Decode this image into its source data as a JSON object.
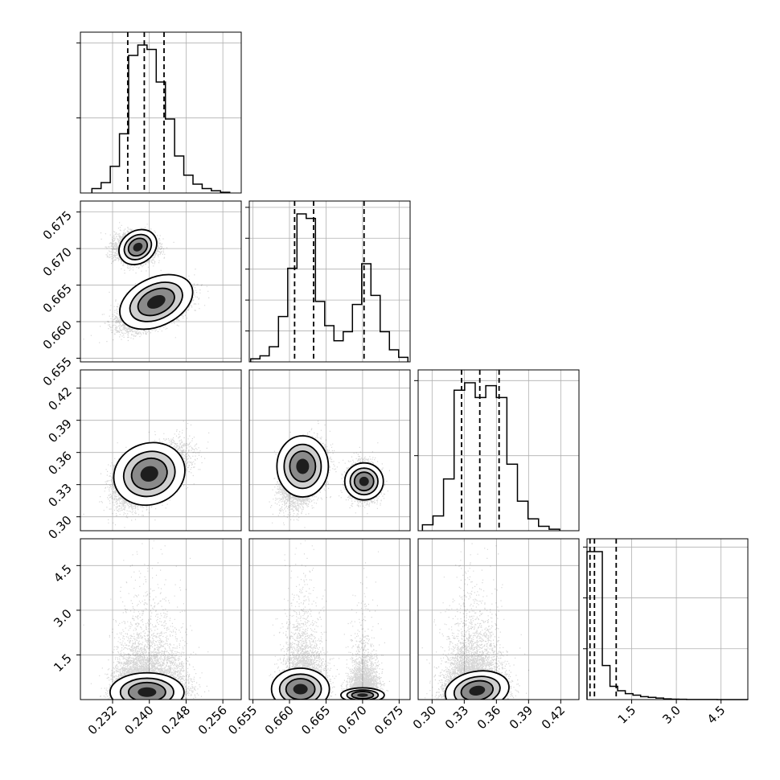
{
  "chart_data": {
    "type": "corner",
    "title": "",
    "parameters": [
      {
        "index": 0,
        "range": [
          0.225,
          0.26
        ],
        "ticks": [
          "0.232",
          "0.240",
          "0.248",
          "0.256"
        ],
        "tick_values": [
          0.232,
          0.24,
          0.248,
          0.256
        ],
        "quantiles": [
          0.2353,
          0.2389,
          0.2432
        ]
      },
      {
        "index": 1,
        "range": [
          0.6545,
          0.6765
        ],
        "ticks": [
          "0.655",
          "0.660",
          "0.665",
          "0.670",
          "0.675"
        ],
        "tick_values": [
          0.655,
          0.66,
          0.665,
          0.67,
          0.675
        ],
        "quantiles": [
          0.6607,
          0.6633,
          0.6702
        ]
      },
      {
        "index": 2,
        "range": [
          0.287,
          0.437
        ],
        "ticks": [
          "0.30",
          "0.33",
          "0.36",
          "0.39",
          "0.42"
        ],
        "tick_values": [
          0.3,
          0.33,
          0.36,
          0.39,
          0.42
        ],
        "quantiles": [
          0.3275,
          0.3445,
          0.3625
        ]
      },
      {
        "index": 3,
        "range": [
          0.0,
          5.4
        ],
        "ticks": [
          "1.5",
          "3.0",
          "4.5"
        ],
        "tick_values": [
          1.5,
          3.0,
          4.5
        ],
        "ticks_y": [
          "1.5",
          "3.0",
          "4.5"
        ],
        "quantiles": [
          0.1,
          0.25,
          0.98
        ]
      }
    ],
    "histograms": [
      {
        "param": 0,
        "counts": [
          3,
          7,
          18,
          40,
          93,
          100,
          97,
          75,
          50,
          25,
          12,
          6,
          3,
          1.5,
          0.5
        ]
      },
      {
        "param": 1,
        "counts": [
          2,
          4,
          10,
          30,
          62,
          98,
          95,
          40,
          24,
          14,
          20,
          38,
          65,
          44,
          20,
          8,
          3
        ]
      },
      {
        "param": 2,
        "counts": [
          4,
          10,
          35,
          95,
          100,
          90,
          98,
          90,
          45,
          20,
          8,
          3,
          1
        ]
      },
      {
        "param": 3,
        "counts": [
          100,
          100,
          23,
          9,
          6,
          4,
          3,
          2,
          1.5,
          1,
          0.5,
          0.3,
          0.2,
          0.1,
          0.1,
          0.05,
          0.05,
          0.02,
          0.02,
          0.01,
          0.01
        ]
      }
    ],
    "modes": [
      {
        "weight": 0.62,
        "mean": [
          0.2405,
          0.6625,
          0.3355,
          0.5
        ]
      },
      {
        "weight": 0.38,
        "mean": [
          0.237,
          0.67,
          0.3345,
          0.5
        ]
      }
    ],
    "grid": true,
    "legend": "none"
  }
}
